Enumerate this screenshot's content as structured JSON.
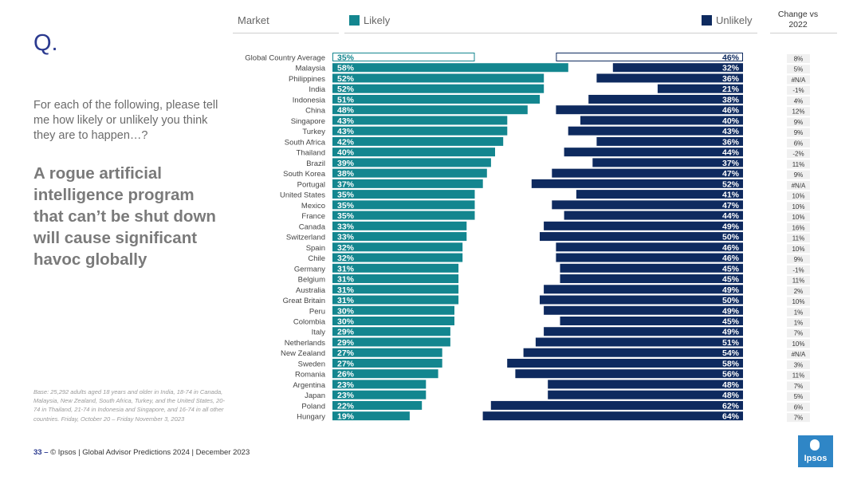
{
  "slide": {
    "q_label": "Q.",
    "question": "For each of the following, please tell me how likely or unlikely you think they are to happen…?",
    "statement": "A rogue artificial intelligence program that can’t be shut down will cause significant havoc globally",
    "base_note": "Base: 25,292 adults aged 18 years and older in India, 18-74 in Canada, Malaysia, New Zealand, South Africa, Turkey, and the United States, 20-74 in Thailand, 21-74 in Indonesia and Singapore, and 16-74 in all other countries. Friday, October 20 – Friday November 3, 2023",
    "footer_page": "33 –",
    "footer_text": "© Ipsos | Global Advisor Predictions 2024 | December 2023",
    "logo_text": "Ipsos"
  },
  "headers": {
    "market": "Market",
    "likely": "Likely",
    "unlikely": "Unlikely",
    "change": "Change vs 2022"
  },
  "colors": {
    "likely": "#13868f",
    "unlikely": "#0e2a5f",
    "outline": "#13868f",
    "outline_unlikely": "#0e2a5f"
  },
  "chart_data": {
    "type": "bar",
    "title": "A rogue artificial intelligence program that can’t be shut down will cause significant havoc globally",
    "xlim": [
      0,
      100
    ],
    "series": [
      {
        "name": "Likely",
        "values": [
          35,
          58,
          52,
          52,
          51,
          48,
          43,
          43,
          42,
          40,
          39,
          38,
          37,
          35,
          35,
          35,
          33,
          33,
          32,
          32,
          31,
          31,
          31,
          31,
          30,
          30,
          29,
          29,
          27,
          27,
          26,
          23,
          23,
          22,
          19
        ]
      },
      {
        "name": "Unlikely",
        "values": [
          46,
          32,
          36,
          21,
          38,
          46,
          40,
          43,
          36,
          44,
          37,
          47,
          52,
          41,
          47,
          44,
          49,
          50,
          46,
          46,
          45,
          45,
          49,
          50,
          49,
          45,
          49,
          51,
          54,
          58,
          56,
          48,
          48,
          62,
          64
        ]
      }
    ],
    "categories": [
      "Global Country Average",
      "Malaysia",
      "Philippines",
      "India",
      "Indonesia",
      "China",
      "Singapore",
      "Turkey",
      "South Africa",
      "Thailand",
      "Brazil",
      "South Korea",
      "Portugal",
      "United States",
      "Mexico",
      "France",
      "Canada",
      "Switzerland",
      "Spain",
      "Chile",
      "Germany",
      "Belgium",
      "Australia",
      "Great Britain",
      "Peru",
      "Colombia",
      "Italy",
      "Netherlands",
      "New Zealand",
      "Sweden",
      "Romania",
      "Argentina",
      "Japan",
      "Poland",
      "Hungary"
    ],
    "change_vs_2022": [
      "8%",
      "5%",
      "#N/A",
      "-1%",
      "4%",
      "12%",
      "9%",
      "9%",
      "6%",
      "-2%",
      "11%",
      "9%",
      "#N/A",
      "10%",
      "10%",
      "10%",
      "16%",
      "11%",
      "10%",
      "9%",
      "-1%",
      "11%",
      "2%",
      "10%",
      "1%",
      "1%",
      "7%",
      "10%",
      "#N/A",
      "3%",
      "11%",
      "7%",
      "5%",
      "6%",
      "7%"
    ]
  }
}
